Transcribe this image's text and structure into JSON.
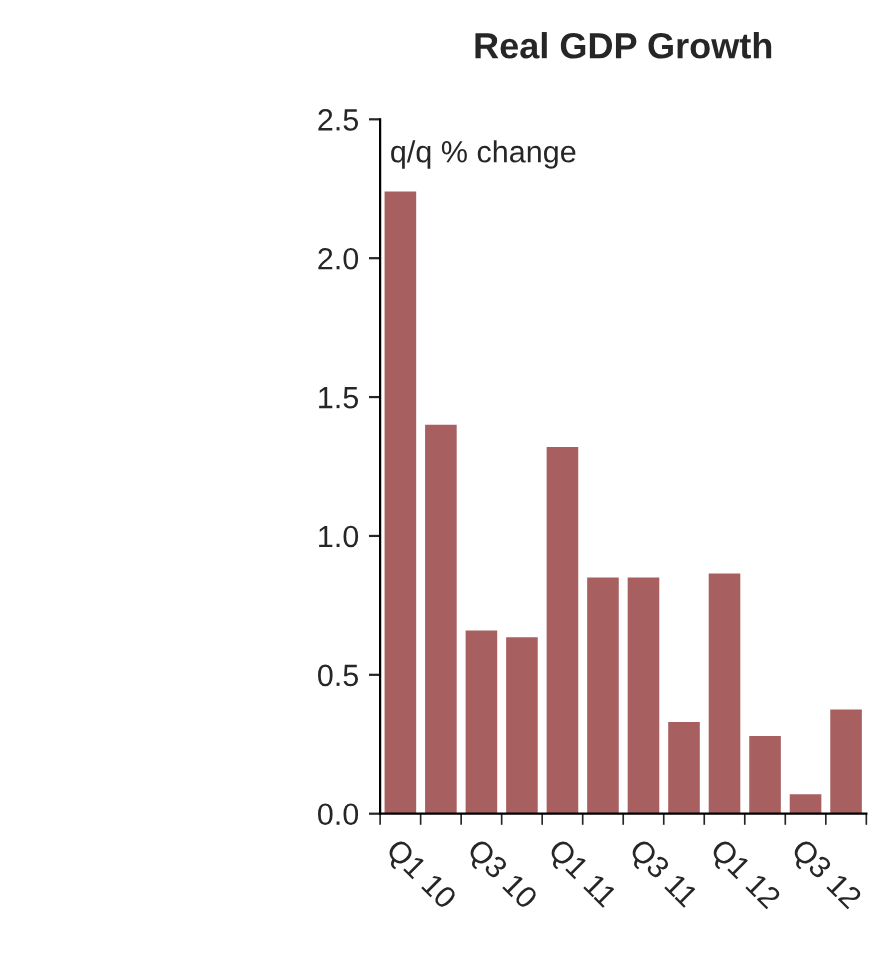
{
  "chart_data": {
    "type": "bar",
    "title": "Real GDP Growth",
    "categories": [
      "Q1 10",
      null,
      "Q3 10",
      null,
      "Q1 11",
      null,
      "Q3 11",
      null,
      "Q1 12",
      null,
      "Q3 12",
      null
    ],
    "values": [
      2.24,
      1.4,
      0.66,
      0.635,
      1.32,
      0.85,
      0.85,
      0.33,
      0.865,
      0.28,
      0.07,
      0.375
    ],
    "color": "#a85f5f",
    "ylim": [
      0,
      2.5
    ],
    "yticks": [
      {
        "value": 0,
        "label": "0.0"
      },
      {
        "value": 0.5,
        "label": "0.5"
      },
      {
        "value": 1,
        "label": "1.0"
      },
      {
        "value": 1.5,
        "label": "1.5"
      },
      {
        "value": 2,
        "label": "2.0"
      },
      {
        "value": 2.5,
        "label": "2.5"
      }
    ],
    "annotations": [
      "q/q % change"
    ],
    "grid": false
  }
}
